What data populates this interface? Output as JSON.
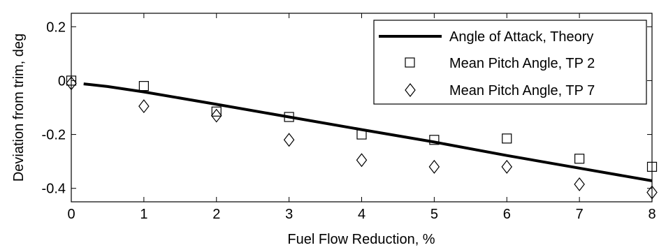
{
  "chart_data": {
    "type": "scatter",
    "title": "",
    "xlabel": "Fuel Flow Reduction, %",
    "ylabel": "Deviation from trim, deg",
    "xlim": [
      0,
      8
    ],
    "ylim": [
      -0.45,
      0.25
    ],
    "xticks": [
      0,
      1,
      2,
      3,
      4,
      5,
      6,
      7,
      8
    ],
    "xtick_labels": [
      "0",
      "1",
      "2",
      "3",
      "4",
      "5",
      "6",
      "7",
      "8"
    ],
    "yticks": [
      0.2,
      0,
      -0.2,
      -0.4
    ],
    "ytick_labels": [
      "0.2",
      "0",
      "-0.2",
      "-0.4"
    ],
    "grid": false,
    "legend": "top-right",
    "series": [
      {
        "name": "Angle of Attack, Theory",
        "kind": "line",
        "color": "#000000",
        "x": [
          0.17,
          0.5,
          1,
          2,
          3,
          4,
          5,
          6,
          7,
          8
        ],
        "y": [
          -0.012,
          -0.022,
          -0.042,
          -0.088,
          -0.135,
          -0.182,
          -0.228,
          -0.278,
          -0.325,
          -0.372
        ]
      },
      {
        "name": "Mean Pitch Angle, TP 2",
        "kind": "marker",
        "marker": "square",
        "color": "#000000",
        "x": [
          0,
          1,
          2,
          3,
          4,
          5,
          6,
          7,
          8
        ],
        "y": [
          0.0,
          -0.02,
          -0.115,
          -0.135,
          -0.2,
          -0.22,
          -0.215,
          -0.29,
          -0.32
        ]
      },
      {
        "name": "Mean Pitch Angle, TP 7",
        "kind": "marker",
        "marker": "diamond",
        "color": "#000000",
        "x": [
          0,
          1,
          2,
          3,
          4,
          5,
          6,
          7,
          8
        ],
        "y": [
          -0.01,
          -0.095,
          -0.13,
          -0.22,
          -0.295,
          -0.32,
          -0.32,
          -0.385,
          -0.415
        ]
      }
    ]
  }
}
